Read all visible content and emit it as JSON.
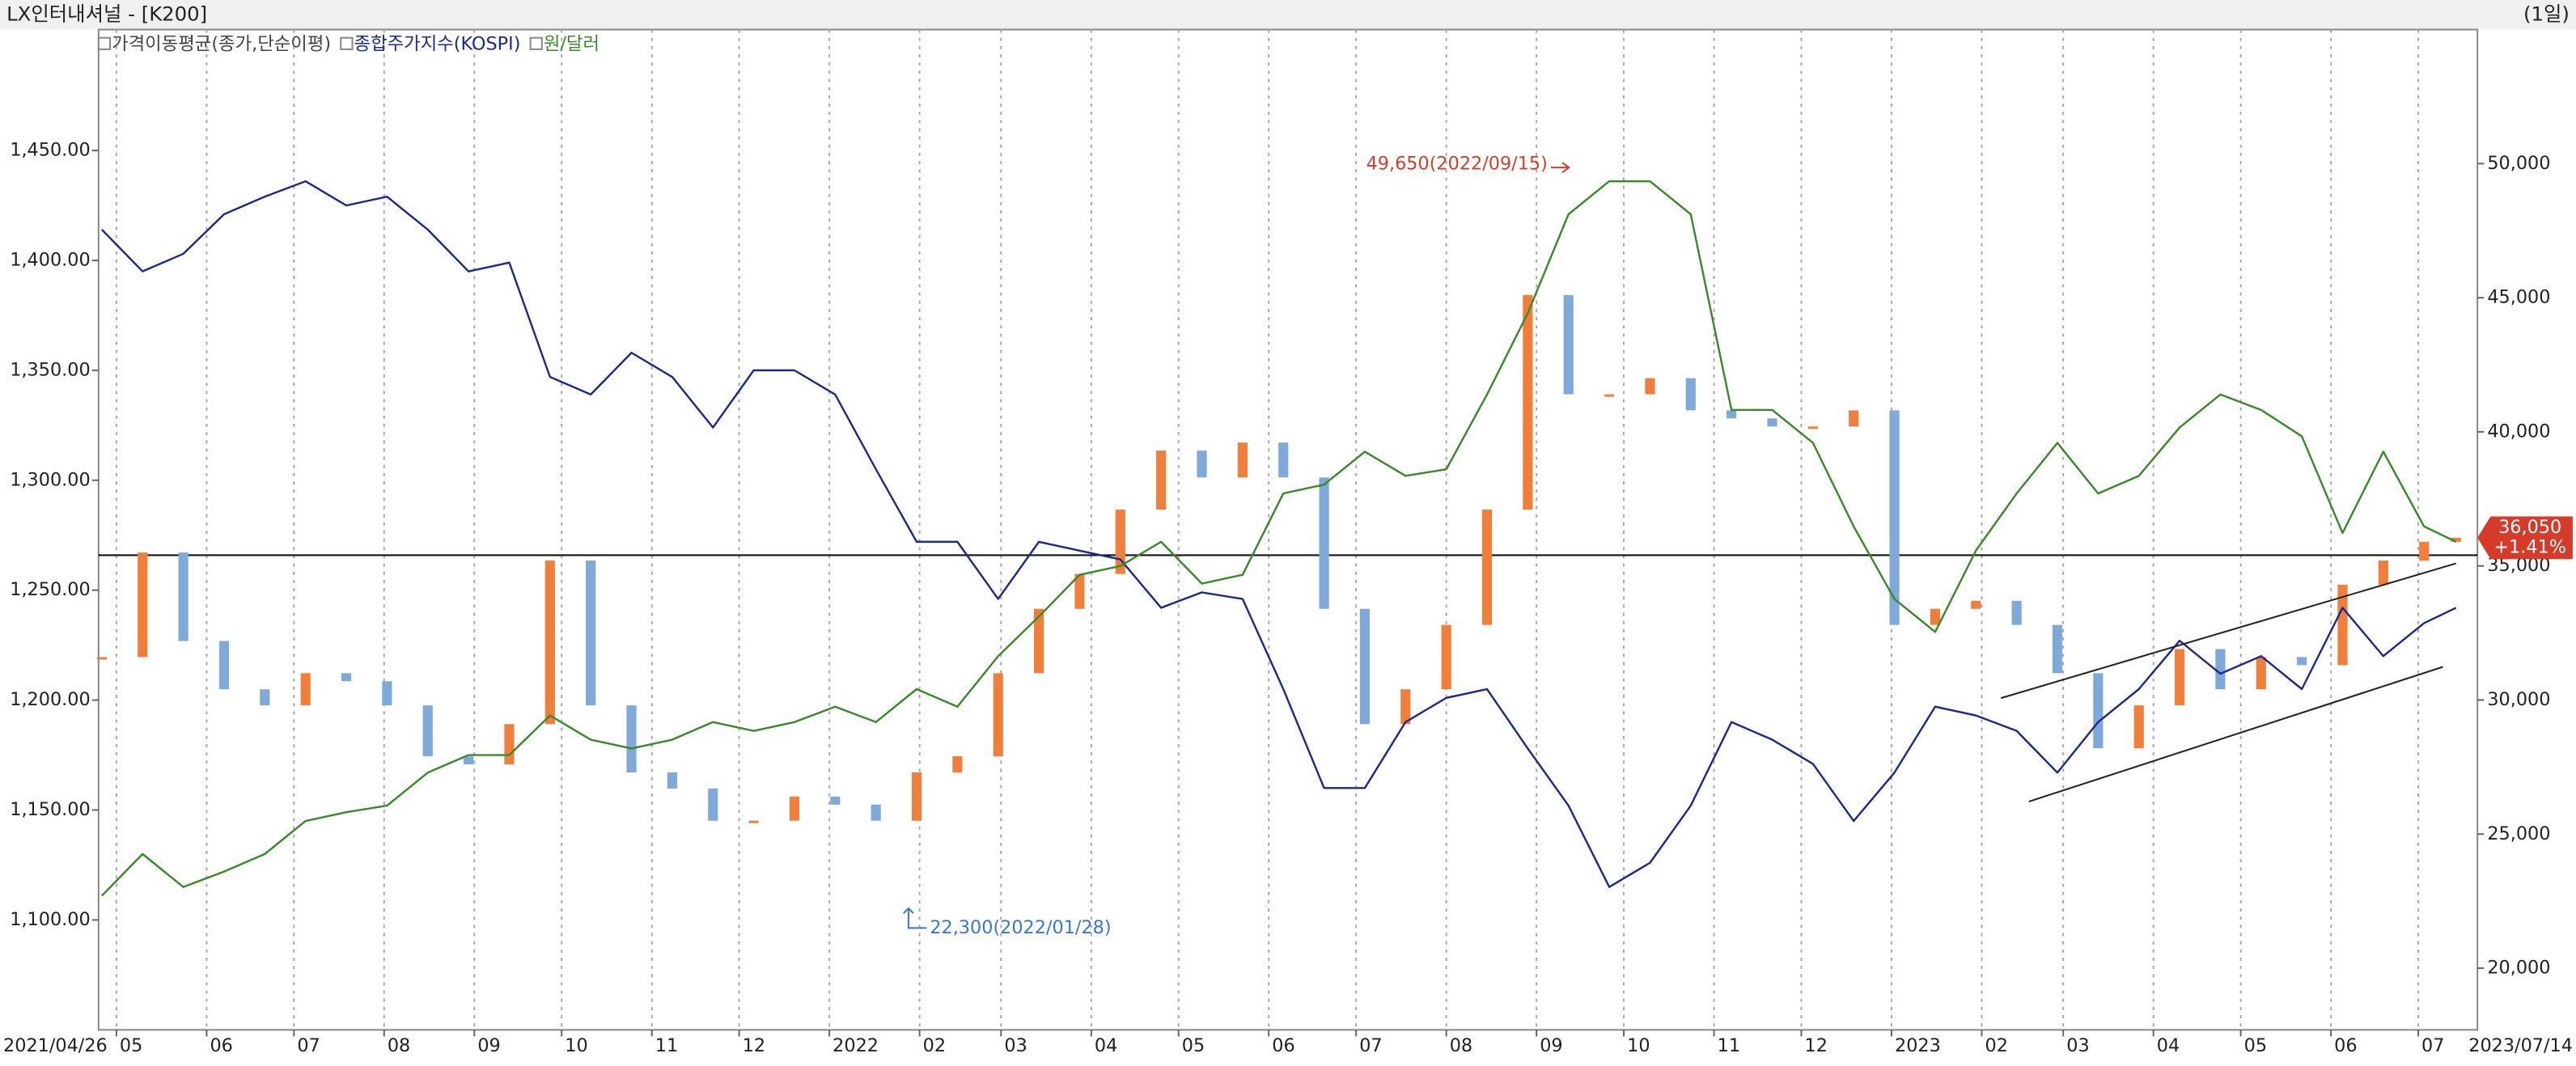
{
  "chart_data": {
    "type": "line",
    "title": "LX인터내셔널 - [K200]",
    "period": "(1일)",
    "x": [
      "2021/04/26",
      "2021/05/10",
      "2021/05/24",
      "2021/06/07",
      "2021/06/21",
      "2021/07/05",
      "2021/07/19",
      "2021/08/02",
      "2021/08/16",
      "2021/08/30",
      "2021/09/13",
      "2021/09/27",
      "2021/10/11",
      "2021/10/25",
      "2021/11/08",
      "2021/11/22",
      "2021/12/06",
      "2021/12/20",
      "2022/01/03",
      "2022/01/17",
      "2022/01/31",
      "2022/02/14",
      "2022/02/28",
      "2022/03/14",
      "2022/03/28",
      "2022/04/11",
      "2022/04/25",
      "2022/05/09",
      "2022/05/23",
      "2022/06/06",
      "2022/06/20",
      "2022/07/04",
      "2022/07/18",
      "2022/08/01",
      "2022/08/15",
      "2022/08/29",
      "2022/09/12",
      "2022/09/26",
      "2022/10/10",
      "2022/10/24",
      "2022/11/07",
      "2022/11/21",
      "2022/12/05",
      "2022/12/19",
      "2023/01/02",
      "2023/01/16",
      "2023/01/30",
      "2023/02/13",
      "2023/02/27",
      "2023/03/13",
      "2023/03/27",
      "2023/04/10",
      "2023/04/24",
      "2023/05/08",
      "2023/05/22",
      "2023/06/05",
      "2023/06/19",
      "2023/07/03",
      "2023/07/14"
    ],
    "series": [
      {
        "name": "가격이동평균(종가,단순이평)",
        "axis": "y2",
        "style": "candle",
        "color": "#f07f3c",
        "down_color": "#7fa9d8",
        "values": [
          31600,
          35500,
          32200,
          30400,
          29800,
          31000,
          30700,
          29800,
          27900,
          27600,
          29100,
          35200,
          29800,
          27300,
          26700,
          25500,
          25500,
          26400,
          26100,
          25500,
          27300,
          27900,
          31000,
          33400,
          34700,
          37100,
          39300,
          38300,
          39600,
          38300,
          33400,
          29100,
          30400,
          32800,
          37100,
          45100,
          41400,
          41400,
          42000,
          40800,
          40500,
          40200,
          40200,
          40800,
          32800,
          33400,
          33700,
          32800,
          31000,
          28200,
          29800,
          31900,
          30400,
          31600,
          31300,
          34300,
          35200,
          35900,
          36050
        ]
      },
      {
        "name": "종합주가지수(KOSPI)",
        "axis": "y",
        "style": "line",
        "color": "#1c2a8f",
        "values": [
          1414,
          1395,
          1403,
          1421,
          1429,
          1436,
          1425,
          1429,
          1414,
          1395,
          1399,
          1347,
          1339,
          1358,
          1347,
          1324,
          1350,
          1350,
          1339,
          1305,
          1272,
          1272,
          1246,
          1272,
          1268,
          1264,
          1242,
          1249,
          1246,
          1205,
          1160,
          1160,
          1190,
          1201,
          1205,
          1178,
          1152,
          1115,
          1126,
          1152,
          1190,
          1182,
          1171,
          1145,
          1167,
          1197,
          1193,
          1186,
          1167,
          1190,
          1205,
          1227,
          1212,
          1220,
          1205,
          1242,
          1220,
          1235,
          1242
        ]
      },
      {
        "name": "원/달러",
        "axis": "y",
        "style": "line",
        "color": "#3a8a2a",
        "values": [
          1111,
          1130,
          1115,
          1122,
          1130,
          1145,
          1149,
          1152,
          1167,
          1175,
          1175,
          1193,
          1182,
          1178,
          1182,
          1190,
          1186,
          1190,
          1197,
          1190,
          1205,
          1197,
          1220,
          1238,
          1257,
          1261,
          1272,
          1253,
          1257,
          1294,
          1298,
          1313,
          1302,
          1305,
          1339,
          1376,
          1421,
          1436,
          1436,
          1421,
          1332,
          1332,
          1317,
          1279,
          1246,
          1231,
          1268,
          1294,
          1317,
          1294,
          1302,
          1324,
          1339,
          1332,
          1320,
          1276,
          1313,
          1279,
          1272
        ]
      }
    ],
    "xlim": [
      {
        "value": "2021/04/26",
        "label": "2021/04/26"
      },
      {
        "value": "2023/07/14",
        "label": "2023/07/14"
      }
    ],
    "xticks": [
      {
        "value": "2021/05",
        "label": "05"
      },
      {
        "value": "2021/06",
        "label": "06"
      },
      {
        "value": "2021/07",
        "label": "07"
      },
      {
        "value": "2021/08",
        "label": "08"
      },
      {
        "value": "2021/09",
        "label": "09"
      },
      {
        "value": "2021/10",
        "label": "10"
      },
      {
        "value": "2021/11",
        "label": "11"
      },
      {
        "value": "2021/12",
        "label": "12"
      },
      {
        "value": "2022/01",
        "label": "2022"
      },
      {
        "value": "2022/02",
        "label": "02"
      },
      {
        "value": "2022/03",
        "label": "03"
      },
      {
        "value": "2022/04",
        "label": "04"
      },
      {
        "value": "2022/05",
        "label": "05"
      },
      {
        "value": "2022/06",
        "label": "06"
      },
      {
        "value": "2022/07",
        "label": "07"
      },
      {
        "value": "2022/08",
        "label": "08"
      },
      {
        "value": "2022/09",
        "label": "09"
      },
      {
        "value": "2022/10",
        "label": "10"
      },
      {
        "value": "2022/11",
        "label": "11"
      },
      {
        "value": "2022/12",
        "label": "12"
      },
      {
        "value": "2023/01",
        "label": "2023"
      },
      {
        "value": "2023/02",
        "label": "02"
      },
      {
        "value": "2023/03",
        "label": "03"
      },
      {
        "value": "2023/04",
        "label": "04"
      },
      {
        "value": "2023/05",
        "label": "05"
      },
      {
        "value": "2023/06",
        "label": "06"
      },
      {
        "value": "2023/07",
        "label": "07"
      }
    ],
    "ylim": [
      1050,
      1505
    ],
    "yticks": [
      {
        "value": 1100,
        "label": "1,100.00"
      },
      {
        "value": 1150,
        "label": "1,150.00"
      },
      {
        "value": 1200,
        "label": "1,200.00"
      },
      {
        "value": 1250,
        "label": "1,250.00"
      },
      {
        "value": 1300,
        "label": "1,300.00"
      },
      {
        "value": 1350,
        "label": "1,350.00"
      },
      {
        "value": 1400,
        "label": "1,400.00"
      },
      {
        "value": 1450,
        "label": "1,450.00"
      }
    ],
    "y2lim": [
      17700,
      55000
    ],
    "y2ticks": [
      {
        "value": 20000,
        "label": "20,000"
      },
      {
        "value": 25000,
        "label": "25,000"
      },
      {
        "value": 30000,
        "label": "30,000"
      },
      {
        "value": 35000,
        "label": "35,000"
      },
      {
        "value": 40000,
        "label": "40,000"
      },
      {
        "value": 45000,
        "label": "45,000"
      },
      {
        "value": 50000,
        "label": "50,000"
      }
    ],
    "grid": "vertical",
    "reference_line": 35400,
    "last_price": {
      "value": 36050,
      "label": "36,050",
      "change": "+1.41%"
    },
    "annotations": [
      {
        "text": "49,650(2022/09/15)",
        "color": "#d2402a"
      },
      {
        "text": "22,300(2022/01/28)",
        "color": "#3a78c8"
      }
    ]
  }
}
